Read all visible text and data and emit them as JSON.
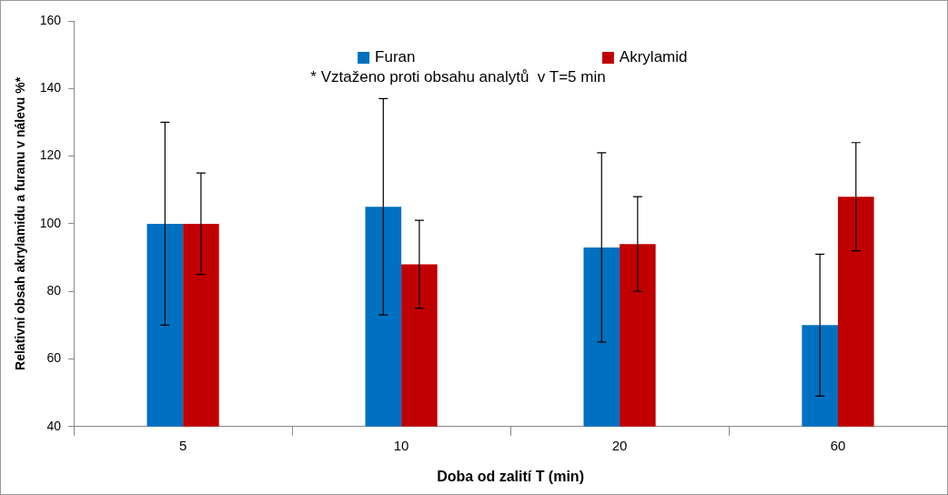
{
  "chart_data": {
    "type": "bar",
    "xlabel": "Doba od zalití T (min)",
    "ylabel": "Relativní obsah akrylamidu a furanu v nálevu %*",
    "categories": [
      "5",
      "10",
      "20",
      "60"
    ],
    "series": [
      {
        "name": "Furan",
        "color": "#0070c0",
        "values": [
          100,
          105,
          93,
          70
        ],
        "errors": [
          30,
          32,
          28,
          21
        ]
      },
      {
        "name": "Akrylamid",
        "color": "#c00000",
        "values": [
          100,
          88,
          94,
          108
        ],
        "errors": [
          15,
          13,
          14,
          16
        ]
      }
    ],
    "ylim": [
      40,
      160
    ],
    "yticks": [
      40,
      60,
      80,
      100,
      120,
      140,
      160
    ],
    "grid": false,
    "legend": "top",
    "annotations": [
      "* Vztaženo proti obsahu analytů  v T=5 min"
    ]
  }
}
